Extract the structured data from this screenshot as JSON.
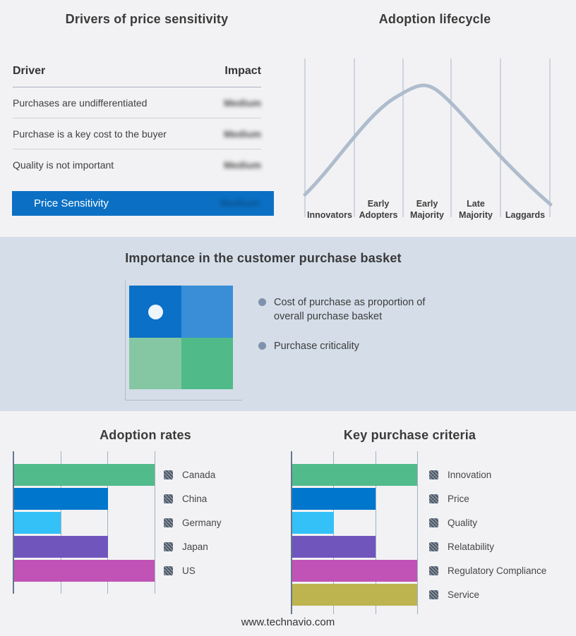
{
  "colors": {
    "band_bg": "#f2f2f4",
    "mid_band_bg": "#d4dde8",
    "accent_blue": "#0b70c4",
    "curve": "#aebccd",
    "gridline": "#a9b6c9",
    "axis": "#64778f",
    "bullet_dot": "#7f92ab",
    "quadrant_top_left": "#0b70c8",
    "quadrant_top_right": "#3a8ed8",
    "quadrant_bottom_left": "#85c7a3",
    "quadrant_bottom_right": "#50ba88"
  },
  "drivers_panel": {
    "title": "Drivers of price sensitivity",
    "col_driver": "Driver",
    "col_impact": "Impact",
    "rows": [
      {
        "driver": "Purchases are undifferentiated",
        "impact": "Medium"
      },
      {
        "driver": "Purchase is a key cost to the buyer",
        "impact": "Medium"
      },
      {
        "driver": "Quality is not important",
        "impact": "Medium"
      }
    ],
    "summary": {
      "label": "Price Sensitivity",
      "impact": "Medium"
    }
  },
  "lifecycle_panel": {
    "title": "Adoption lifecycle",
    "stages": [
      {
        "lines": [
          "Innovators"
        ]
      },
      {
        "lines": [
          "Early",
          "Adopters"
        ]
      },
      {
        "lines": [
          "Early",
          "Majority"
        ]
      },
      {
        "lines": [
          "Late",
          "Majority"
        ]
      },
      {
        "lines": [
          "Laggards"
        ]
      }
    ]
  },
  "basket_panel": {
    "title": "Importance in the customer purchase basket",
    "bullets": [
      "Cost of purchase as proportion of overall purchase basket",
      "Purchase criticality"
    ]
  },
  "footer": {
    "url": "www.technavio.com"
  },
  "chart_data": [
    {
      "type": "line",
      "title": "Adoption lifecycle",
      "x_categories": [
        "Innovators",
        "Early Adopters",
        "Early Majority",
        "Late Majority",
        "Laggards"
      ],
      "description": "Bell-shaped adoption curve rising through Innovators and Early Adopters, peaking over Early Majority, declining through Late Majority and Laggards",
      "grid": "vertical stage dividers",
      "line_color": "#aebccd"
    },
    {
      "type": "bar",
      "title": "Adoption rates",
      "orientation": "horizontal",
      "categories": [
        "Canada",
        "China",
        "Germany",
        "Japan",
        "US"
      ],
      "values": [
        3,
        2,
        1,
        2,
        3
      ],
      "xlim": [
        0,
        3
      ],
      "grid": true,
      "legend_position": "right",
      "colors": [
        "#52bb8c",
        "#0076cc",
        "#33c1f7",
        "#7055bd",
        "#c053b5"
      ]
    },
    {
      "type": "bar",
      "title": "Key purchase criteria",
      "orientation": "horizontal",
      "categories": [
        "Innovation",
        "Price",
        "Quality",
        "Relatability",
        "Regulatory Compliance",
        "Service"
      ],
      "values": [
        3,
        2,
        1,
        2,
        3,
        3
      ],
      "xlim": [
        0,
        3
      ],
      "grid": true,
      "legend_position": "right",
      "colors": [
        "#52bb8c",
        "#0076cc",
        "#33c1f7",
        "#7055bd",
        "#c053b5",
        "#bdb44f"
      ]
    },
    {
      "type": "table",
      "title": "Drivers of price sensitivity",
      "columns": [
        "Driver",
        "Impact"
      ],
      "rows": [
        [
          "Purchases are undifferentiated",
          "Medium"
        ],
        [
          "Purchase is a key cost to the buyer",
          "Medium"
        ],
        [
          "Quality is not important",
          "Medium"
        ],
        [
          "Price Sensitivity",
          "Medium"
        ]
      ]
    }
  ]
}
